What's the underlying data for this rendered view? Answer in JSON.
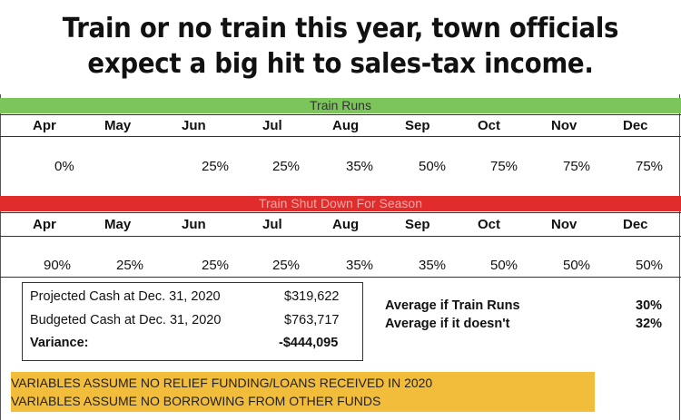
{
  "headline": {
    "line1": "Train or no train this year, town officials",
    "line2": "expect a big hit to sales-tax income."
  },
  "months": [
    "Apr",
    "May",
    "Jun",
    "Jul",
    "Aug",
    "Sep",
    "Oct",
    "Nov",
    "Dec"
  ],
  "train_runs": {
    "label": "Train Runs",
    "color": "#7bc55a",
    "values": [
      "0%",
      "",
      "25%",
      "25%",
      "35%",
      "50%",
      "75%",
      "75%",
      "75%"
    ]
  },
  "train_shutdown": {
    "label": "Train Shut Down For Season",
    "color": "#e12c2c",
    "values": [
      "90%",
      "25%",
      "25%",
      "25%",
      "35%",
      "35%",
      "50%",
      "50%",
      "50%"
    ]
  },
  "summary": {
    "projected_label": "Projected Cash at Dec. 31, 2020",
    "projected_value": "$319,622",
    "budgeted_label": "Budgeted Cash at Dec. 31, 2020",
    "budgeted_value": "$763,717",
    "variance_label": "Variance:",
    "variance_value": "-$444,095"
  },
  "averages": {
    "runs_label": "Average if Train Runs",
    "runs_value": "30%",
    "doesnt_label": "Average if it doesn't",
    "doesnt_value": "32%"
  },
  "notice": {
    "color": "#f2bd3a",
    "line1": "VARIABLES ASSUME NO RELIEF FUNDING/LOANS RECEIVED IN 2020",
    "line2": "VARIABLES ASSUME NO BORROWING FROM OTHER FUNDS"
  }
}
